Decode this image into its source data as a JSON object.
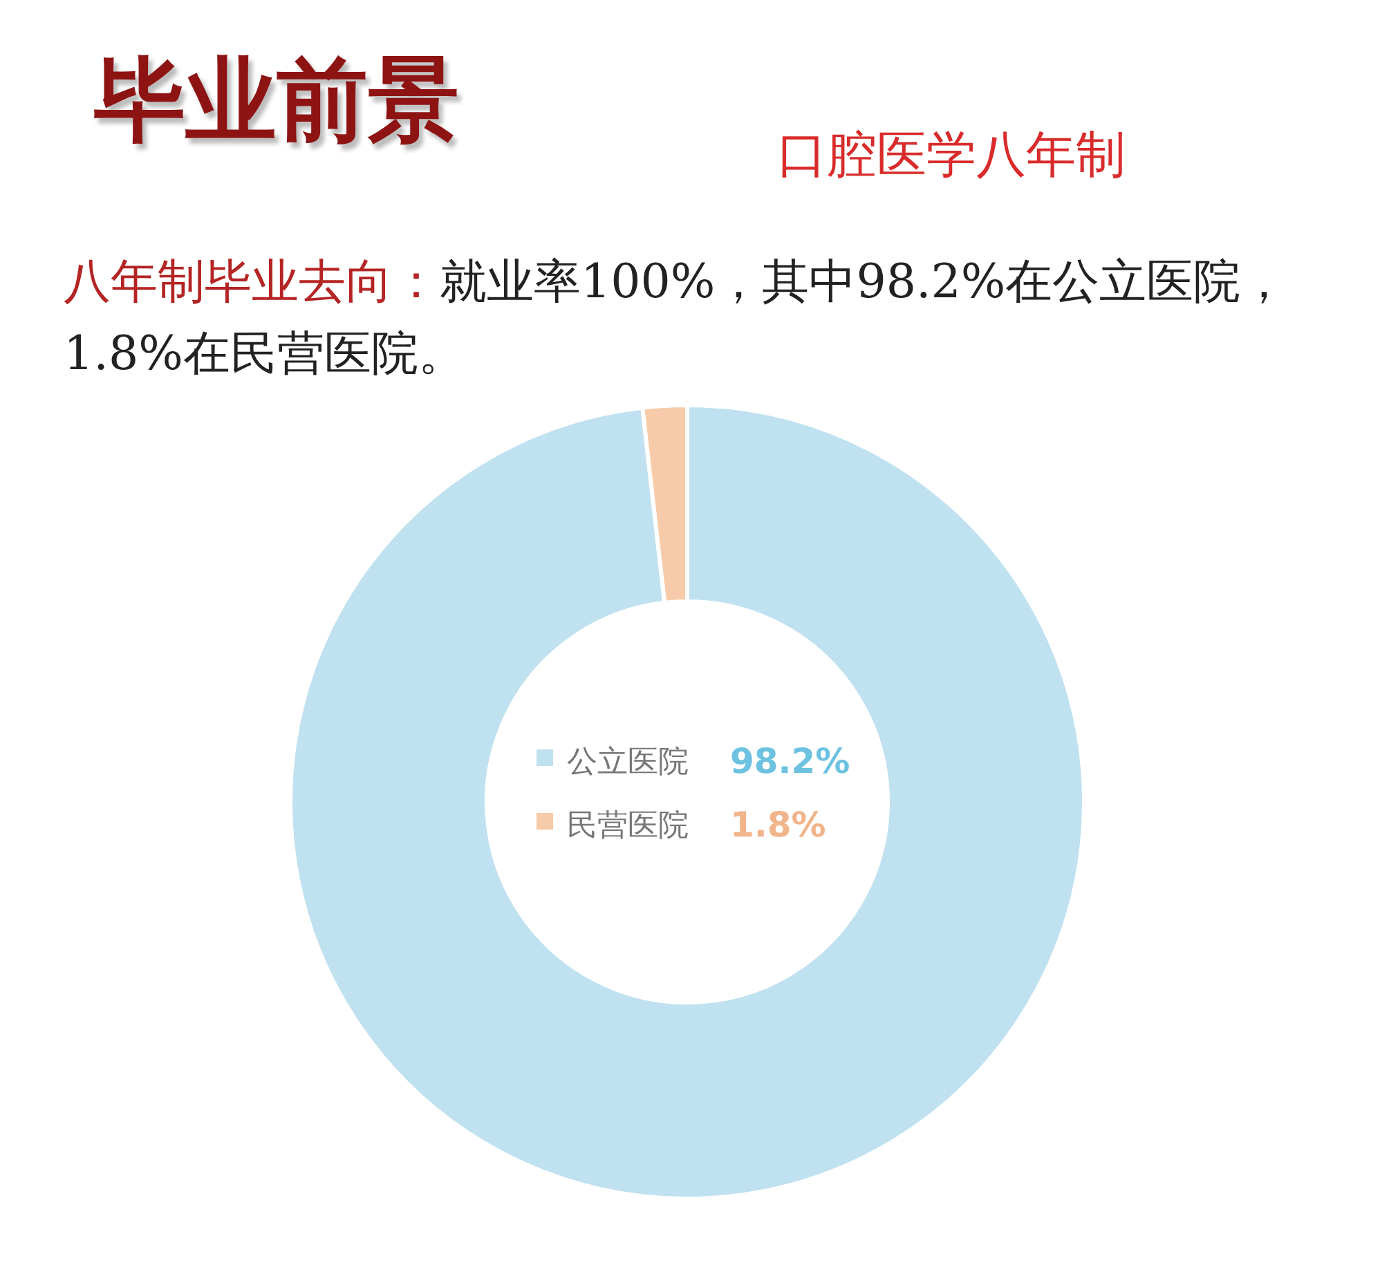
{
  "chart_data": {
    "type": "donut",
    "title": "毕业前景",
    "subtitle": "口腔医学八年制",
    "annotations": [
      "八年制毕业去向：",
      "就业率100%，其中98.2%在公立医院，1.8%在民营医院。"
    ],
    "categories": [
      "公立医院",
      "民营医院"
    ],
    "values": [
      98.2,
      1.8
    ],
    "value_labels": [
      "98.2%",
      "1.8%"
    ],
    "colors": [
      "#bfe1f0",
      "#f7cba9"
    ],
    "legend": "center"
  }
}
